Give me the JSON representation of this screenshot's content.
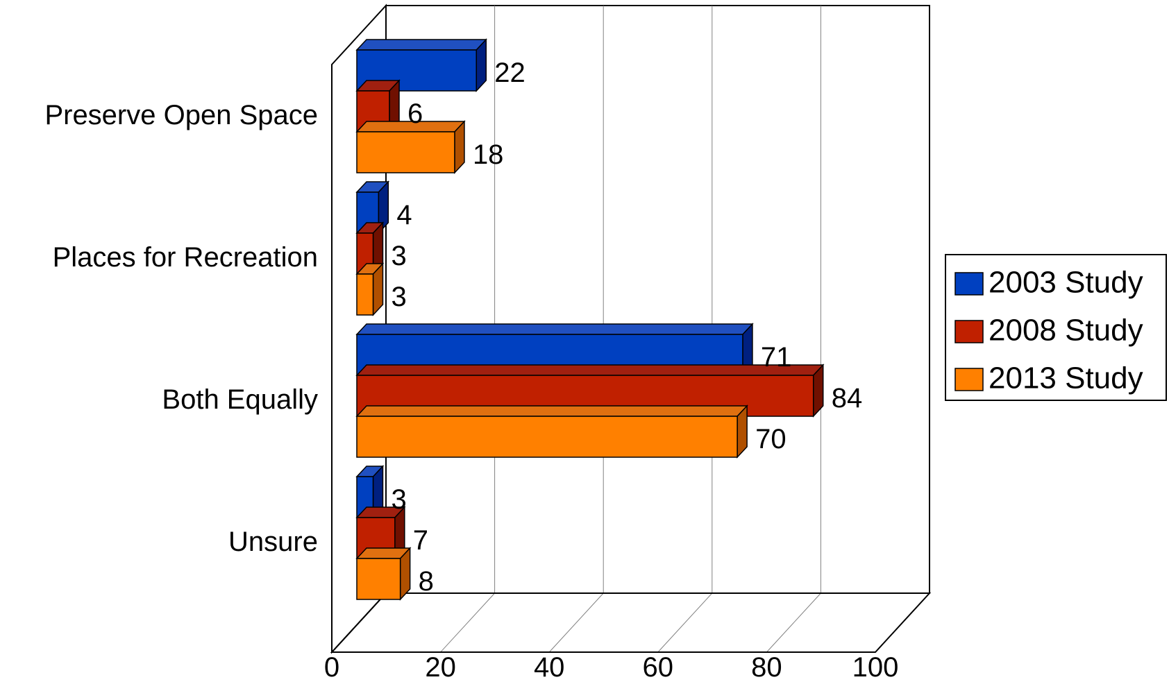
{
  "chart_data": {
    "type": "bar",
    "orientation": "horizontal",
    "style": "3d",
    "title": "",
    "xlabel": "",
    "ylabel": "",
    "categories": [
      "Preserve Open Space",
      "Places for Recreation",
      "Both Equally",
      "Unsure"
    ],
    "series": [
      {
        "name": "2003 Study",
        "values": [
          22,
          4,
          71,
          3
        ],
        "color": "#0040C0",
        "side_color": "#002080",
        "top_color": "#2050C0"
      },
      {
        "name": "2008 Study",
        "values": [
          6,
          3,
          84,
          7
        ],
        "color": "#C02000",
        "side_color": "#701000",
        "top_color": "#A02010"
      },
      {
        "name": "2013 Study",
        "values": [
          18,
          3,
          70,
          8
        ],
        "color": "#FF8000",
        "side_color": "#B05000",
        "top_color": "#E07010"
      }
    ],
    "xlim": [
      0,
      100
    ],
    "xticks": [
      "0",
      "20",
      "40",
      "60",
      "80",
      "100"
    ],
    "grid": true,
    "legend_position": "right"
  }
}
